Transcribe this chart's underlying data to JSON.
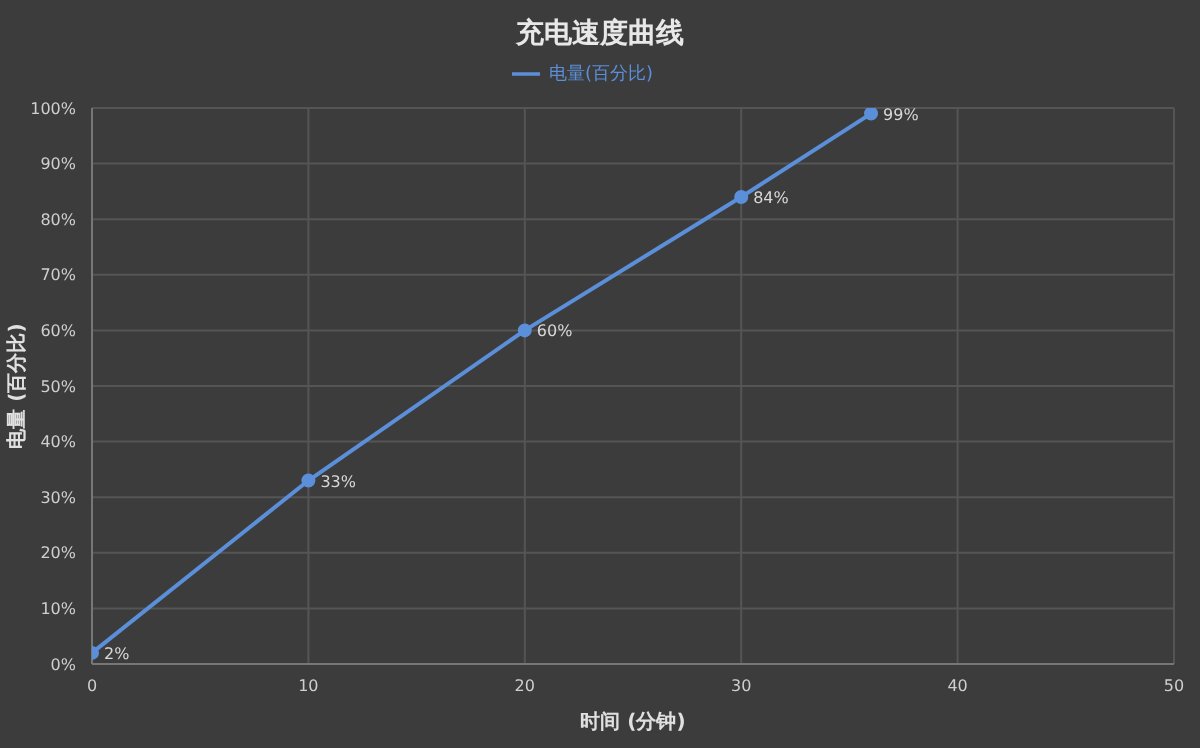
{
  "chart_data": {
    "type": "line",
    "title": "充电速度曲线",
    "xlabel": "时间 (分钟)",
    "ylabel": "电量 (百分比)",
    "x": [
      0,
      10,
      20,
      30,
      36
    ],
    "series": [
      {
        "name": "电量(百分比)",
        "color": "#5b8fd9",
        "values": [
          2,
          33,
          60,
          84,
          99
        ],
        "value_labels": [
          "2%",
          "33%",
          "60%",
          "84%",
          "99%"
        ]
      }
    ],
    "xlim": [
      0,
      50
    ],
    "xticks": [
      0,
      10,
      20,
      30,
      40,
      50
    ],
    "ylim": [
      0,
      100
    ],
    "yticks": [
      {
        "value": 0,
        "label": "0%"
      },
      {
        "value": 10,
        "label": "10%"
      },
      {
        "value": 20,
        "label": "20%"
      },
      {
        "value": 30,
        "label": "30%"
      },
      {
        "value": 40,
        "label": "40%"
      },
      {
        "value": 50,
        "label": "50%"
      },
      {
        "value": 60,
        "label": "60%"
      },
      {
        "value": 70,
        "label": "70%"
      },
      {
        "value": 80,
        "label": "80%"
      },
      {
        "value": 90,
        "label": "90%"
      },
      {
        "value": 100,
        "label": "100%"
      }
    ],
    "grid": true,
    "legend": "top",
    "marker": "circle",
    "line_style": "solid"
  }
}
